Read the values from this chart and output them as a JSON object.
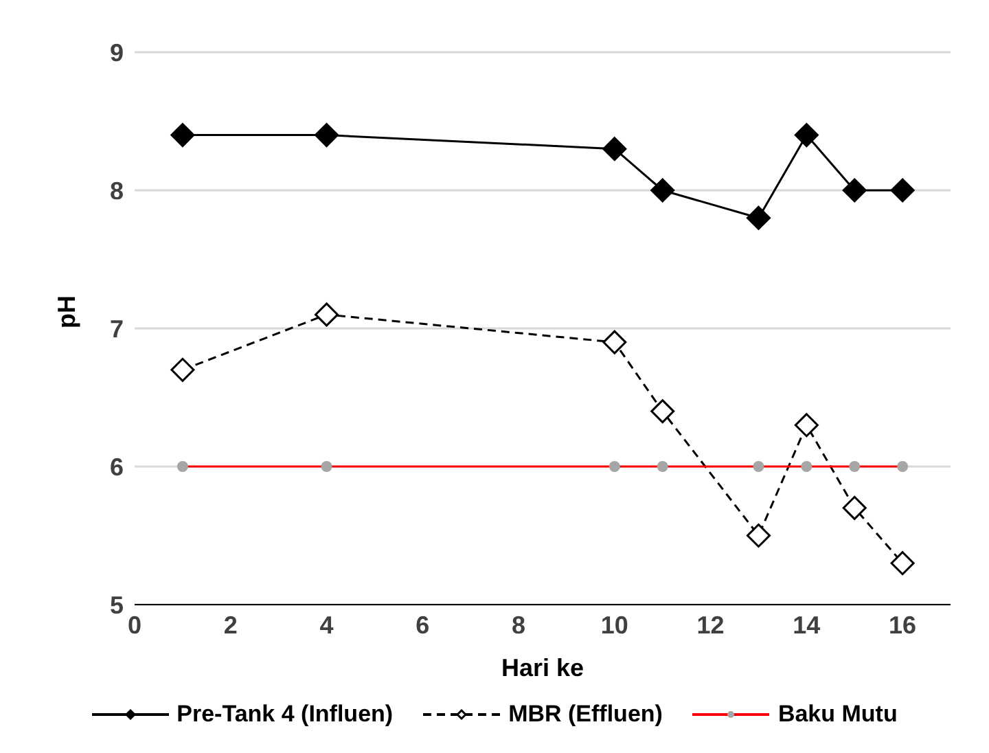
{
  "chart_data": {
    "type": "line",
    "xlabel": "Hari ke",
    "ylabel": "pH",
    "x": [
      1,
      4,
      10,
      11,
      13,
      14,
      15,
      16
    ],
    "series": [
      {
        "name": "Pre-Tank 4 (Influen)",
        "color": "#000000",
        "marker": "diamond",
        "line_style": "solid",
        "values": [
          8.4,
          8.4,
          8.3,
          8.0,
          7.8,
          8.4,
          8.0,
          8.0
        ]
      },
      {
        "name": "MBR (Effluen)",
        "color": "#000000",
        "marker": "diamond",
        "line_style": "dashed",
        "values": [
          6.7,
          7.1,
          6.9,
          6.4,
          5.5,
          6.3,
          5.7,
          5.3
        ]
      },
      {
        "name": "Baku Mutu",
        "color": "#ff0000",
        "marker": "circle",
        "line_style": "solid",
        "values": [
          6,
          6,
          6,
          6,
          6,
          6,
          6,
          6
        ]
      }
    ],
    "xlim": [
      0,
      17
    ],
    "xticks": [
      0,
      2,
      4,
      6,
      8,
      10,
      12,
      14,
      16
    ],
    "ylim": [
      5,
      9
    ],
    "yticks": [
      5,
      6,
      7,
      8,
      9
    ],
    "grid": "y",
    "legend": "bottom"
  }
}
